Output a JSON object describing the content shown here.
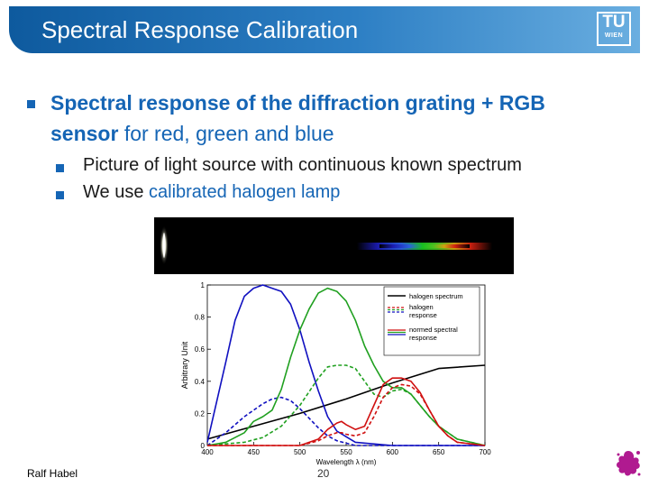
{
  "slide": {
    "title": "Spectral Response Calibration",
    "logo_tu": "TU",
    "logo_wien": "WIEN",
    "bullet1_bold": "Spectral response of the diffraction grating + RGB sensor",
    "bullet1_rest": " for red, green and blue",
    "sub1": "Picture of light source with continuous known spectrum",
    "sub2_a": "We use ",
    "sub2_b": "calibrated halogen lamp",
    "author": "Ralf Habel",
    "page": "20"
  },
  "colors": {
    "accent": "#1565b5",
    "title_bg": "#2d7fc4"
  },
  "chart_data": {
    "type": "line",
    "xlabel": "Wavelength λ (nm)",
    "ylabel": "Arbitrary Unit",
    "xlim": [
      400,
      700
    ],
    "ylim": [
      0,
      1
    ],
    "xticks": [
      400,
      450,
      500,
      550,
      600,
      650,
      700
    ],
    "yticks": [
      0,
      0.2,
      0.4,
      0.6,
      0.8,
      1
    ],
    "yticklabels": [
      "0",
      "0.2",
      "0.4",
      "0.6",
      "0.8",
      "1"
    ],
    "legend_position": "top-right",
    "legend": [
      {
        "label": "halogen spectrum",
        "style": "black-solid"
      },
      {
        "label": "halogen response",
        "style": "rgb-dashed"
      },
      {
        "label": "normed spectral response",
        "style": "rgb-solid"
      }
    ],
    "series": [
      {
        "color": "#000000",
        "dash": false,
        "x": [
          400,
          450,
          500,
          550,
          600,
          650,
          700
        ],
        "y": [
          0.04,
          0.12,
          0.2,
          0.29,
          0.39,
          0.48,
          0.5
        ]
      },
      {
        "color": "#1010c0",
        "dash": false,
        "x": [
          400,
          420,
          430,
          440,
          450,
          460,
          470,
          480,
          490,
          500,
          510,
          520,
          530,
          540,
          560,
          600,
          700
        ],
        "y": [
          0.02,
          0.52,
          0.78,
          0.93,
          0.98,
          1.0,
          0.98,
          0.96,
          0.88,
          0.72,
          0.52,
          0.34,
          0.18,
          0.09,
          0.02,
          0.0,
          0.0
        ]
      },
      {
        "color": "#1010c0",
        "dash": true,
        "x": [
          400,
          420,
          440,
          460,
          470,
          480,
          490,
          500,
          510,
          520,
          530,
          540,
          560,
          600,
          700
        ],
        "y": [
          0.0,
          0.08,
          0.18,
          0.26,
          0.29,
          0.3,
          0.28,
          0.23,
          0.17,
          0.11,
          0.06,
          0.03,
          0.0,
          0.0,
          0.0
        ]
      },
      {
        "color": "#20a020",
        "dash": false,
        "x": [
          400,
          420,
          440,
          450,
          460,
          470,
          480,
          490,
          500,
          510,
          520,
          530,
          540,
          550,
          560,
          570,
          580,
          590,
          600,
          610,
          620,
          630,
          640,
          650,
          670,
          700
        ],
        "y": [
          0.0,
          0.02,
          0.08,
          0.15,
          0.18,
          0.22,
          0.35,
          0.55,
          0.72,
          0.85,
          0.95,
          0.98,
          0.96,
          0.9,
          0.78,
          0.62,
          0.5,
          0.4,
          0.36,
          0.36,
          0.32,
          0.25,
          0.18,
          0.12,
          0.04,
          0.0
        ]
      },
      {
        "color": "#20a020",
        "dash": true,
        "x": [
          400,
          440,
          460,
          480,
          500,
          520,
          530,
          540,
          550,
          560,
          570,
          580,
          590,
          600,
          610,
          620,
          630,
          640,
          650,
          670,
          700
        ],
        "y": [
          0.0,
          0.02,
          0.05,
          0.12,
          0.25,
          0.42,
          0.49,
          0.5,
          0.5,
          0.48,
          0.4,
          0.32,
          0.3,
          0.34,
          0.35,
          0.32,
          0.25,
          0.18,
          0.12,
          0.04,
          0.0
        ]
      },
      {
        "color": "#d01010",
        "dash": false,
        "x": [
          400,
          500,
          520,
          530,
          540,
          545,
          550,
          560,
          570,
          580,
          590,
          600,
          610,
          620,
          630,
          640,
          650,
          660,
          670,
          700
        ],
        "y": [
          0.0,
          0.0,
          0.04,
          0.1,
          0.14,
          0.15,
          0.13,
          0.1,
          0.12,
          0.25,
          0.38,
          0.42,
          0.42,
          0.4,
          0.33,
          0.22,
          0.12,
          0.06,
          0.02,
          0.0
        ]
      },
      {
        "color": "#d01010",
        "dash": true,
        "x": [
          400,
          500,
          520,
          530,
          540,
          545,
          550,
          560,
          570,
          580,
          590,
          600,
          610,
          620,
          630,
          640,
          650,
          660,
          670,
          700
        ],
        "y": [
          0.0,
          0.0,
          0.03,
          0.06,
          0.08,
          0.08,
          0.07,
          0.06,
          0.08,
          0.18,
          0.3,
          0.36,
          0.38,
          0.37,
          0.32,
          0.22,
          0.12,
          0.06,
          0.02,
          0.0
        ]
      }
    ]
  }
}
